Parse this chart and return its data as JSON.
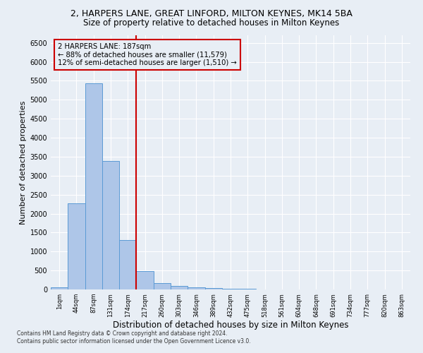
{
  "title1": "2, HARPERS LANE, GREAT LINFORD, MILTON KEYNES, MK14 5BA",
  "title2": "Size of property relative to detached houses in Milton Keynes",
  "xlabel": "Distribution of detached houses by size in Milton Keynes",
  "ylabel": "Number of detached properties",
  "footer1": "Contains HM Land Registry data © Crown copyright and database right 2024.",
  "footer2": "Contains public sector information licensed under the Open Government Licence v3.0.",
  "categories": [
    "1sqm",
    "44sqm",
    "87sqm",
    "131sqm",
    "174sqm",
    "217sqm",
    "260sqm",
    "303sqm",
    "346sqm",
    "389sqm",
    "432sqm",
    "475sqm",
    "518sqm",
    "561sqm",
    "604sqm",
    "648sqm",
    "691sqm",
    "734sqm",
    "777sqm",
    "820sqm",
    "863sqm"
  ],
  "values": [
    65,
    2270,
    5430,
    3390,
    1300,
    480,
    165,
    95,
    65,
    35,
    20,
    10,
    5,
    3,
    2,
    1,
    1,
    0,
    0,
    0,
    0
  ],
  "bar_color": "#aec6e8",
  "bar_edge_color": "#5b9bd5",
  "vline_x": 4.5,
  "vline_color": "#cc0000",
  "annotation_text": "2 HARPERS LANE: 187sqm\n← 88% of detached houses are smaller (11,579)\n12% of semi-detached houses are larger (1,510) →",
  "annotation_box_color": "#cc0000",
  "ylim": [
    0,
    6700
  ],
  "yticks": [
    0,
    500,
    1000,
    1500,
    2000,
    2500,
    3000,
    3500,
    4000,
    4500,
    5000,
    5500,
    6000,
    6500
  ],
  "bg_color": "#e8eef5",
  "grid_color": "#ffffff",
  "title1_fontsize": 9,
  "title2_fontsize": 8.5,
  "xlabel_fontsize": 8.5,
  "ylabel_fontsize": 8
}
